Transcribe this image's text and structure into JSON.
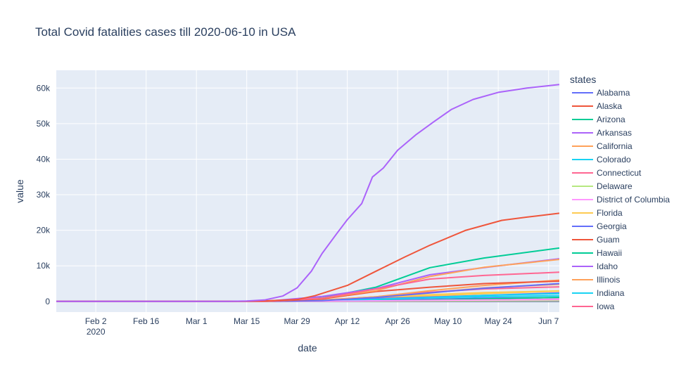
{
  "chart_data": {
    "type": "line",
    "title": "Total Covid fatalities cases till 2020-06-10 in USA",
    "xlabel": "date",
    "ylabel": "value",
    "legend_title": "states",
    "legend_position": "right",
    "grid": true,
    "xlim": [
      "2020-01-22",
      "2020-06-10"
    ],
    "ylim": [
      -3000,
      65000
    ],
    "x_ticks": [
      {
        "date": "2020-02-02",
        "label": "Feb 2",
        "sublabel": "2020"
      },
      {
        "date": "2020-02-16",
        "label": "Feb 16"
      },
      {
        "date": "2020-03-01",
        "label": "Mar 1"
      },
      {
        "date": "2020-03-15",
        "label": "Mar 15"
      },
      {
        "date": "2020-03-29",
        "label": "Mar 29"
      },
      {
        "date": "2020-04-12",
        "label": "Apr 12"
      },
      {
        "date": "2020-04-26",
        "label": "Apr 26"
      },
      {
        "date": "2020-05-10",
        "label": "May 10"
      },
      {
        "date": "2020-05-24",
        "label": "May 24"
      },
      {
        "date": "2020-06-07",
        "label": "Jun 7"
      }
    ],
    "y_ticks": [
      {
        "value": 0,
        "label": "0"
      },
      {
        "value": 10000,
        "label": "10k"
      },
      {
        "value": 20000,
        "label": "20k"
      },
      {
        "value": 30000,
        "label": "30k"
      },
      {
        "value": 40000,
        "label": "40k"
      },
      {
        "value": 50000,
        "label": "50k"
      },
      {
        "value": 60000,
        "label": "60k"
      }
    ],
    "series": [
      {
        "name": "Alabama",
        "color": "#636efa",
        "x": [
          "2020-01-22",
          "2020-03-25",
          "2020-04-05",
          "2020-04-20",
          "2020-05-05",
          "2020-05-20",
          "2020-06-10"
        ],
        "values": [
          0,
          0,
          100,
          300,
          600,
          900,
          1100
        ]
      },
      {
        "name": "Alaska",
        "color": "#EF553B",
        "x": [
          "2020-01-22",
          "2020-03-25",
          "2020-04-10",
          "2020-05-01",
          "2020-06-10"
        ],
        "values": [
          0,
          0,
          5,
          9,
          12
        ]
      },
      {
        "name": "Arizona",
        "color": "#00cc96",
        "x": [
          "2020-01-22",
          "2020-03-25",
          "2020-04-10",
          "2020-05-01",
          "2020-05-20",
          "2020-06-10"
        ],
        "values": [
          0,
          0,
          150,
          350,
          700,
          1150
        ]
      },
      {
        "name": "Arkansas",
        "color": "#ab63fa",
        "x": [
          "2020-01-22",
          "2020-03-25",
          "2020-04-10",
          "2020-05-01",
          "2020-06-10"
        ],
        "values": [
          0,
          0,
          30,
          90,
          180
        ]
      },
      {
        "name": "California",
        "color": "#FFA15A",
        "x": [
          "2020-01-22",
          "2020-03-20",
          "2020-04-05",
          "2020-04-20",
          "2020-05-05",
          "2020-05-20",
          "2020-06-10"
        ],
        "values": [
          0,
          20,
          400,
          1300,
          2500,
          3800,
          4800
        ]
      },
      {
        "name": "Colorado",
        "color": "#19d3f3",
        "x": [
          "2020-01-22",
          "2020-03-20",
          "2020-04-05",
          "2020-04-20",
          "2020-05-05",
          "2020-05-20",
          "2020-06-10"
        ],
        "values": [
          0,
          5,
          200,
          600,
          1000,
          1300,
          1600
        ]
      },
      {
        "name": "Connecticut",
        "color": "#FF6692",
        "x": [
          "2020-01-22",
          "2020-03-22",
          "2020-04-05",
          "2020-04-20",
          "2020-05-05",
          "2020-05-20",
          "2020-06-10"
        ],
        "values": [
          0,
          10,
          300,
          1300,
          2600,
          3500,
          4100
        ]
      },
      {
        "name": "Delaware",
        "color": "#B6E880",
        "x": [
          "2020-01-22",
          "2020-03-25",
          "2020-04-15",
          "2020-05-05",
          "2020-06-10"
        ],
        "values": [
          0,
          0,
          60,
          200,
          400
        ]
      },
      {
        "name": "District of Columbia",
        "color": "#FF97FF",
        "x": [
          "2020-01-22",
          "2020-03-25",
          "2020-04-15",
          "2020-05-05",
          "2020-06-10"
        ],
        "values": [
          0,
          0,
          70,
          250,
          500
        ]
      },
      {
        "name": "Florida",
        "color": "#FECB52",
        "x": [
          "2020-01-22",
          "2020-03-15",
          "2020-04-01",
          "2020-04-15",
          "2020-05-01",
          "2020-05-20",
          "2020-06-10"
        ],
        "values": [
          0,
          10,
          150,
          700,
          1400,
          2200,
          2900
        ]
      },
      {
        "name": "Georgia",
        "color": "#636efa",
        "x": [
          "2020-01-22",
          "2020-03-15",
          "2020-04-01",
          "2020-04-15",
          "2020-05-01",
          "2020-05-20",
          "2020-06-10"
        ],
        "values": [
          0,
          5,
          180,
          600,
          1100,
          1700,
          2400
        ]
      },
      {
        "name": "Guam",
        "color": "#EF553B",
        "x": [
          "2020-01-22",
          "2020-03-25",
          "2020-06-10"
        ],
        "values": [
          0,
          0,
          5
        ]
      },
      {
        "name": "Hawaii",
        "color": "#00cc96",
        "x": [
          "2020-01-22",
          "2020-03-28",
          "2020-06-10"
        ],
        "values": [
          0,
          0,
          17
        ]
      },
      {
        "name": "Idaho",
        "color": "#ab63fa",
        "x": [
          "2020-01-22",
          "2020-03-28",
          "2020-04-15",
          "2020-06-10"
        ],
        "values": [
          0,
          0,
          30,
          85
        ]
      },
      {
        "name": "Illinois",
        "color": "#FFA15A",
        "x": [
          "2020-01-22",
          "2020-03-20",
          "2020-04-05",
          "2020-04-20",
          "2020-05-05",
          "2020-05-20",
          "2020-06-10"
        ],
        "values": [
          0,
          5,
          300,
          1300,
          3000,
          4500,
          6000
        ]
      },
      {
        "name": "Indiana",
        "color": "#19d3f3",
        "x": [
          "2020-01-22",
          "2020-03-20",
          "2020-04-05",
          "2020-04-20",
          "2020-05-05",
          "2020-05-20",
          "2020-06-10"
        ],
        "values": [
          0,
          5,
          130,
          600,
          1100,
          1700,
          2200
        ]
      },
      {
        "name": "Iowa",
        "color": "#FF6692",
        "x": [
          "2020-01-22",
          "2020-03-25",
          "2020-04-15",
          "2020-05-05",
          "2020-05-20",
          "2020-06-10"
        ],
        "values": [
          0,
          0,
          60,
          250,
          400,
          600
        ]
      },
      {
        "name": "",
        "color": "#B6E880",
        "x": [
          "2020-01-22",
          "2020-03-28",
          "2020-04-15",
          "2020-05-10",
          "2020-06-10"
        ],
        "values": [
          0,
          0,
          50,
          150,
          250
        ]
      },
      {
        "name": "",
        "color": "#FF97FF",
        "x": [
          "2020-01-22",
          "2020-03-25",
          "2020-04-15",
          "2020-05-10",
          "2020-06-10"
        ],
        "values": [
          0,
          0,
          100,
          350,
          500
        ]
      },
      {
        "name": "",
        "color": "#FECB52",
        "x": [
          "2020-01-22",
          "2020-03-20",
          "2020-04-05",
          "2020-04-20",
          "2020-05-05",
          "2020-05-20",
          "2020-06-10"
        ],
        "values": [
          0,
          10,
          300,
          1200,
          1900,
          2500,
          2950
        ]
      },
      {
        "name": "",
        "color": "#636efa",
        "x": [
          "2020-01-22",
          "2020-03-20",
          "2020-04-05",
          "2020-04-20",
          "2020-05-05",
          "2020-05-20",
          "2020-06-10"
        ],
        "values": [
          0,
          5,
          250,
          1100,
          2400,
          3700,
          5000
        ]
      },
      {
        "name": "",
        "color": "#EF553B",
        "x": [
          "2020-01-22",
          "2020-03-20",
          "2020-04-05",
          "2020-04-20",
          "2020-05-05",
          "2020-05-20",
          "2020-06-10"
        ],
        "values": [
          0,
          5,
          700,
          2800,
          4000,
          5000,
          5700
        ]
      },
      {
        "name": "",
        "color": "#00cc96",
        "x": [
          "2020-01-22",
          "2020-03-20",
          "2020-04-05",
          "2020-04-20",
          "2020-05-05",
          "2020-05-20",
          "2020-06-10"
        ],
        "values": [
          0,
          10,
          1000,
          4000,
          9500,
          12200,
          15000
        ]
      },
      {
        "name": "",
        "color": "#ab63fa",
        "x": [
          "2020-01-22",
          "2020-03-20",
          "2020-04-05",
          "2020-04-20",
          "2020-05-05",
          "2020-05-20",
          "2020-06-10"
        ],
        "values": [
          0,
          5,
          1400,
          3600,
          7500,
          9500,
          12000
        ]
      },
      {
        "name": "",
        "color": "#FFA15A",
        "x": [
          "2020-01-22",
          "2020-03-20",
          "2020-04-05",
          "2020-04-20",
          "2020-05-05",
          "2020-05-20",
          "2020-06-10"
        ],
        "values": [
          0,
          10,
          900,
          3000,
          7000,
          9600,
          11800
        ]
      },
      {
        "name": "",
        "color": "#FF6692",
        "x": [
          "2020-01-22",
          "2020-03-20",
          "2020-04-05",
          "2020-04-20",
          "2020-05-05",
          "2020-05-20",
          "2020-06-10"
        ],
        "values": [
          0,
          10,
          900,
          3500,
          6300,
          7300,
          8200
        ]
      },
      {
        "name": "",
        "color": "#EF553B",
        "x": [
          "2020-01-22",
          "2020-03-10",
          "2020-03-20",
          "2020-03-29",
          "2020-04-03",
          "2020-04-12",
          "2020-04-20",
          "2020-04-28",
          "2020-05-05",
          "2020-05-15",
          "2020-05-25",
          "2020-06-01",
          "2020-06-10"
        ],
        "values": [
          0,
          20,
          150,
          500,
          1600,
          4500,
          8500,
          12500,
          15800,
          20000,
          22800,
          23700,
          24800
        ]
      },
      {
        "name": "",
        "color": "#ab63fa",
        "x": [
          "2020-01-22",
          "2020-03-10",
          "2020-03-15",
          "2020-03-20",
          "2020-03-25",
          "2020-03-29",
          "2020-04-02",
          "2020-04-05",
          "2020-04-09",
          "2020-04-12",
          "2020-04-16",
          "2020-04-19",
          "2020-04-22",
          "2020-04-26",
          "2020-05-01",
          "2020-05-06",
          "2020-05-11",
          "2020-05-17",
          "2020-05-24",
          "2020-06-01",
          "2020-06-10"
        ],
        "values": [
          0,
          20,
          100,
          400,
          1500,
          3800,
          8500,
          13500,
          19000,
          23000,
          27500,
          35000,
          37500,
          42500,
          46800,
          50500,
          54000,
          56800,
          58800,
          60000,
          61000
        ]
      }
    ]
  }
}
